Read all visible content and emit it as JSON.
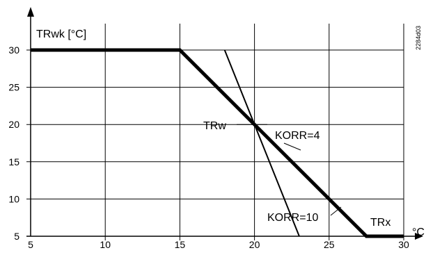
{
  "chart_data": {
    "type": "line",
    "ylabel": "TRwk [°C]",
    "xlabel": "°C",
    "code": "2284d03",
    "xlim": [
      5,
      30
    ],
    "ylim": [
      5,
      30
    ],
    "x_ticks": [
      5,
      10,
      15,
      20,
      25,
      30
    ],
    "y_ticks": [
      5,
      10,
      15,
      20,
      25,
      30
    ],
    "grid": true,
    "series": [
      {
        "name": "KORR=4",
        "emphasis": "bold",
        "points": [
          [
            5,
            30
          ],
          [
            15,
            30
          ],
          [
            27.5,
            5
          ],
          [
            30,
            5
          ]
        ]
      },
      {
        "name": "KORR=10",
        "emphasis": "thin",
        "points": [
          [
            18,
            30
          ],
          [
            23,
            5
          ]
        ]
      }
    ],
    "annotations": {
      "trw": "TRw",
      "korr4": "KORR=4",
      "korr10": "KORR=10",
      "trx": "TRx"
    }
  }
}
